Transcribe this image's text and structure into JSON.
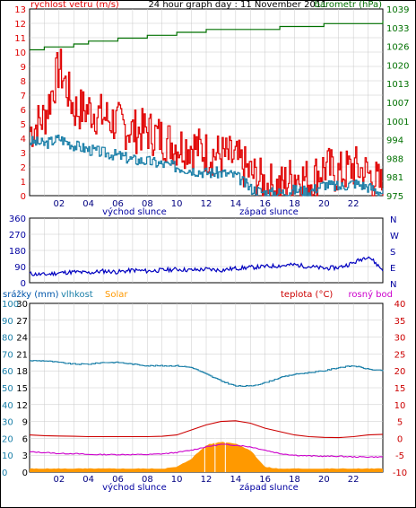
{
  "title": "24 hour graph day : 11 November 2011",
  "colors": {
    "gust": "#e00000",
    "avg_wind": "#1a7fa8",
    "pressure": "#007000",
    "direction": "#0000c0",
    "humidity": "#1a7fa8",
    "solar": "#ff9900",
    "temperature": "#cc0000",
    "dewpoint": "#cc00cc",
    "rain": "#0055aa",
    "axis_left": "#e00000",
    "axis_right": "#007000",
    "grid": "#c8c8c8"
  },
  "x_ticks": [
    "02",
    "04",
    "06",
    "08",
    "10",
    "12",
    "14",
    "16",
    "18",
    "20",
    "22"
  ],
  "markers": {
    "sunrise": "východ slunce",
    "sunset": "západ slunce"
  },
  "wind_panel": {
    "left_label": "rychlost vetru (m/s)",
    "right_label": "barometr (hPa)",
    "left_ticks": [
      "13",
      "12",
      "11",
      "10",
      "9",
      "8",
      "7",
      "6",
      "5",
      "4",
      "3",
      "2",
      "1",
      "0"
    ],
    "right_ticks": [
      "1039",
      "1033",
      "1026",
      "1020",
      "1013",
      "1007",
      "1001",
      "994",
      "988",
      "981",
      "975"
    ]
  },
  "dir_panel": {
    "left_ticks": [
      "360",
      "270",
      "180",
      "90",
      "0"
    ],
    "right_labels": [
      "N",
      "W",
      "S",
      "E",
      "N"
    ]
  },
  "weather_panel": {
    "labels": {
      "rain": "srážky (mm)",
      "humidity": "vlhkost",
      "solar": "Solar",
      "temperature": "teplota (°C)",
      "dewpoint": "rosný bod"
    },
    "humidity_ticks": [
      "100",
      "90",
      "80",
      "70",
      "60",
      "50",
      "40",
      "30",
      "20",
      "10",
      "0"
    ],
    "rain_ticks": [
      "30",
      "27",
      "24",
      "21",
      "18",
      "15",
      "12",
      "9",
      "6",
      "3",
      "0"
    ],
    "temp_ticks": [
      "40",
      "35",
      "30",
      "25",
      "20",
      "15",
      "10",
      "5",
      "0",
      "-5",
      "-10"
    ]
  },
  "chart_data": [
    {
      "type": "line",
      "title": "24 hour graph day : 11 November 2011",
      "xlabel": "",
      "ylabel": "rychlost vetru (m/s)",
      "y2label": "barometr (hPa)",
      "x": [
        0,
        1,
        2,
        3,
        4,
        5,
        6,
        7,
        8,
        9,
        10,
        11,
        12,
        13,
        14,
        15,
        16,
        17,
        18,
        19,
        20,
        21,
        22,
        23,
        24
      ],
      "xlim": [
        0,
        24
      ],
      "ylim": [
        0,
        13
      ],
      "y2lim": [
        975,
        1039
      ],
      "grid": true,
      "series": [
        {
          "name": "",
          "axis": "left",
          "values": [
            4.5,
            5.5,
            9.0,
            6.0,
            6.0,
            5.5,
            5.0,
            4.5,
            4.5,
            4.0,
            3.5,
            3.5,
            3.0,
            2.8,
            2.5,
            1.5,
            0.8,
            0.6,
            1.5,
            1.0,
            2.0,
            1.5,
            2.0,
            1.5,
            0.5
          ]
        },
        {
          "name": "",
          "axis": "left",
          "values": [
            3.8,
            3.6,
            4.0,
            3.5,
            3.2,
            3.0,
            2.8,
            2.5,
            2.4,
            2.2,
            2.0,
            1.8,
            1.6,
            1.6,
            1.4,
            0.5,
            0.2,
            0.2,
            0.4,
            0.3,
            0.8,
            0.6,
            0.9,
            0.6,
            0.2
          ]
        },
        {
          "name": "",
          "axis": "right",
          "values": [
            1025,
            1026,
            1026,
            1027,
            1028,
            1028,
            1029,
            1029,
            1030,
            1030,
            1031,
            1031,
            1032,
            1032,
            1032,
            1032,
            1032,
            1033,
            1033,
            1033,
            1034,
            1034,
            1034,
            1034,
            1035
          ]
        }
      ]
    },
    {
      "type": "line",
      "title": "",
      "ylabel": "",
      "x": [
        0,
        1,
        2,
        3,
        4,
        5,
        6,
        7,
        8,
        9,
        10,
        11,
        12,
        13,
        14,
        15,
        16,
        17,
        18,
        19,
        20,
        21,
        22,
        23,
        24
      ],
      "xlim": [
        0,
        24
      ],
      "ylim": [
        0,
        360
      ],
      "grid": true,
      "series": [
        {
          "name": "",
          "values": [
            50,
            45,
            55,
            60,
            55,
            65,
            60,
            70,
            65,
            70,
            75,
            70,
            75,
            70,
            80,
            85,
            90,
            95,
            100,
            90,
            80,
            85,
            110,
            150,
            70
          ]
        }
      ]
    },
    {
      "type": "line",
      "title": "",
      "ylabel": "vlhkost",
      "y2label": "teplota (°C)",
      "x": [
        0,
        1,
        2,
        3,
        4,
        5,
        6,
        7,
        8,
        9,
        10,
        11,
        12,
        13,
        14,
        15,
        16,
        17,
        18,
        19,
        20,
        21,
        22,
        23,
        24
      ],
      "xlim": [
        0,
        24
      ],
      "grid": true,
      "humidity_lim": [
        0,
        100
      ],
      "temp_lim": [
        -10,
        40
      ],
      "rain_lim": [
        0,
        30
      ],
      "series": [
        {
          "name": "vlhkost",
          "axis": "humidity",
          "values": [
            66,
            66,
            65,
            64,
            64,
            65,
            65,
            64,
            63,
            63,
            63,
            62,
            58,
            54,
            51,
            51,
            53,
            56,
            58,
            59,
            60,
            62,
            63,
            61,
            60
          ]
        },
        {
          "name": "teplota (°C)",
          "axis": "temp",
          "values": [
            1.0,
            0.8,
            0.7,
            0.6,
            0.5,
            0.5,
            0.5,
            0.5,
            0.5,
            0.6,
            1.0,
            2.5,
            4.0,
            5.0,
            5.2,
            4.5,
            3.0,
            2.0,
            1.0,
            0.5,
            0.3,
            0.2,
            0.5,
            1.0,
            1.2
          ]
        },
        {
          "name": "rosný bod",
          "axis": "temp",
          "values": [
            -4.0,
            -4.2,
            -4.5,
            -4.5,
            -4.8,
            -4.8,
            -4.8,
            -4.8,
            -4.8,
            -4.6,
            -4.2,
            -3.5,
            -2.5,
            -1.8,
            -2.0,
            -2.5,
            -3.5,
            -4.5,
            -5.0,
            -5.2,
            -5.3,
            -5.3,
            -5.5,
            -5.5,
            -5.5
          ]
        },
        {
          "name": "Solar",
          "axis": "humidity",
          "kind": "area",
          "values": [
            0,
            0,
            0,
            0,
            0,
            0,
            0,
            0,
            0,
            0,
            1,
            6,
            14,
            16,
            15,
            11,
            1,
            0,
            0,
            0,
            0,
            0,
            0,
            0,
            0
          ]
        },
        {
          "name": "srážky (mm)",
          "axis": "rain",
          "values": [
            0,
            0,
            0,
            0,
            0,
            0,
            0,
            0,
            0,
            0,
            0,
            0,
            0,
            0,
            0,
            0,
            0,
            0,
            0,
            0,
            0,
            0,
            0,
            0,
            0
          ]
        }
      ]
    }
  ]
}
